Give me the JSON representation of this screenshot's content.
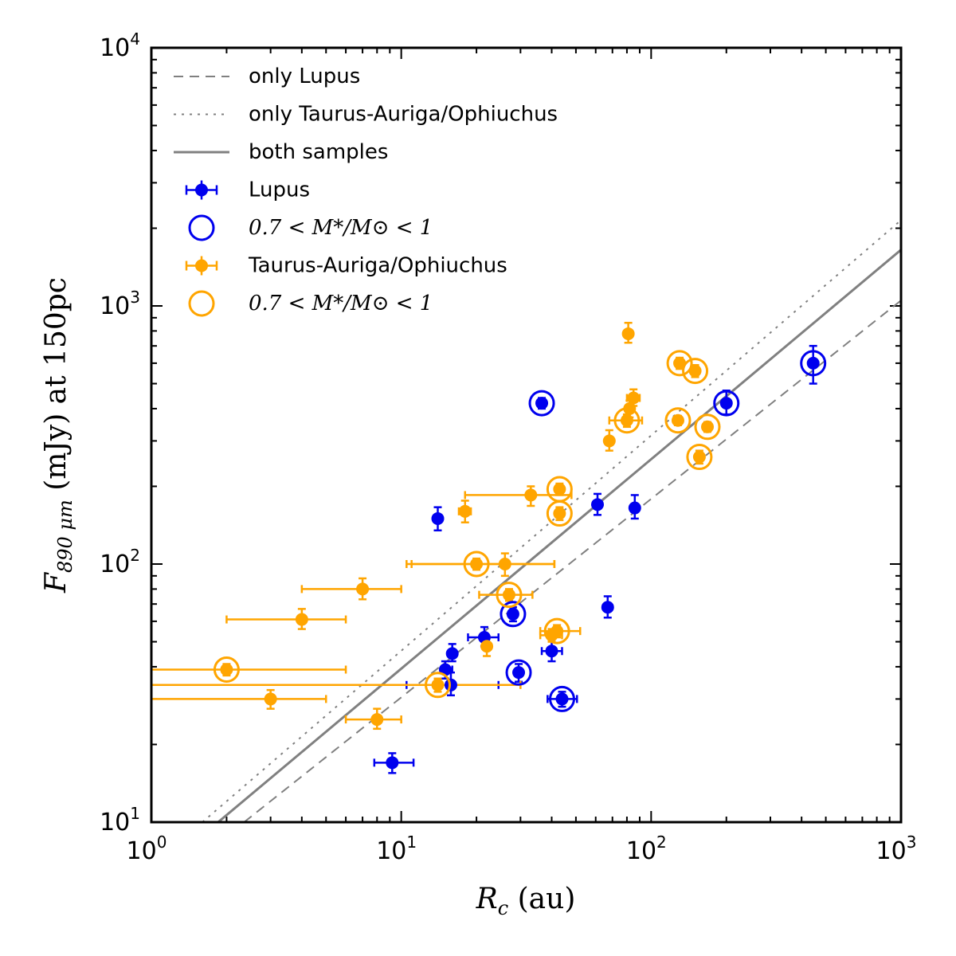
{
  "chart_data": {
    "type": "scatter",
    "x_scale": "log",
    "y_scale": "log",
    "xlim": [
      1,
      1000
    ],
    "ylim": [
      10,
      10000
    ],
    "x_ticks": [
      {
        "base": "10",
        "exp": "0",
        "value": 1
      },
      {
        "base": "10",
        "exp": "1",
        "value": 10
      },
      {
        "base": "10",
        "exp": "2",
        "value": 100
      },
      {
        "base": "10",
        "exp": "3",
        "value": 1000
      }
    ],
    "y_ticks": [
      {
        "base": "10",
        "exp": "1",
        "value": 10
      },
      {
        "base": "10",
        "exp": "2",
        "value": 100
      },
      {
        "base": "10",
        "exp": "3",
        "value": 1000
      },
      {
        "base": "10",
        "exp": "4",
        "value": 10000
      }
    ],
    "xlabel": {
      "main": "R",
      "sub": "c",
      "rest": " (au)"
    },
    "ylabel": {
      "main": "F",
      "sub": "890 μm",
      "rest": " (mJy) at 150pc"
    },
    "colors": {
      "lupus": "#0000ee",
      "taurus": "#ffa500",
      "fit": "#808080"
    },
    "fit_lines": [
      {
        "name": "only Lupus",
        "style": "dashed",
        "points": [
          [
            2.35,
            10
          ],
          [
            1000,
            1050
          ]
        ]
      },
      {
        "name": "only Taurus-Auriga/Ophiuchus",
        "style": "dotted",
        "points": [
          [
            1.6,
            10
          ],
          [
            1000,
            2150
          ]
        ]
      },
      {
        "name": "both samples",
        "style": "solid",
        "points": [
          [
            1.85,
            10
          ],
          [
            1000,
            1650
          ]
        ]
      }
    ],
    "legend": {
      "position": "top-left",
      "entries": [
        {
          "kind": "dashed",
          "label": "only Lupus"
        },
        {
          "kind": "dotted",
          "label": "only Taurus-Auriga/Ophiuchus"
        },
        {
          "kind": "solid",
          "label": "both samples"
        },
        {
          "kind": "lupus-point",
          "label": "Lupus"
        },
        {
          "kind": "lupus-ring",
          "label": "0.7 < M*/M⊙ < 1"
        },
        {
          "kind": "taurus-point",
          "label": "Taurus-Auriga/Ophiuchus"
        },
        {
          "kind": "taurus-ring",
          "label": "0.7 < M*/M⊙ < 1"
        }
      ]
    },
    "series": [
      {
        "name": "Lupus",
        "points": [
          {
            "x": 14.0,
            "y": 150,
            "xerr": [
              13.8,
              14.3
            ],
            "yerr": [
              135,
              166
            ],
            "ring": false
          },
          {
            "x": 36.5,
            "y": 420,
            "xerr": [
              36.3,
              36.8
            ],
            "yerr": [
              400,
              440
            ],
            "ring": true
          },
          {
            "x": 61.0,
            "y": 170,
            "xerr": [
              60.5,
              61.5
            ],
            "yerr": [
              155,
              187
            ],
            "ring": false
          },
          {
            "x": 86.0,
            "y": 165,
            "xerr": [
              85.5,
              86.5
            ],
            "yerr": [
              150,
              185
            ],
            "ring": false
          },
          {
            "x": 200,
            "y": 420,
            "xerr": [
              198,
              202
            ],
            "yerr": [
              380,
              470
            ],
            "ring": true
          },
          {
            "x": 445,
            "y": 600,
            "xerr": [
              440,
              450
            ],
            "yerr": [
              500,
              700
            ],
            "ring": true
          },
          {
            "x": 67.0,
            "y": 68,
            "xerr": [
              66.5,
              67.5
            ],
            "yerr": [
              62,
              75
            ],
            "ring": false
          },
          {
            "x": 28.0,
            "y": 64,
            "xerr": [
              27.8,
              28.2
            ],
            "yerr": [
              60,
              68
            ],
            "ring": true
          },
          {
            "x": 21.5,
            "y": 52,
            "xerr": [
              18.5,
              24.5
            ],
            "yerr": [
              48,
              57
            ],
            "ring": false
          },
          {
            "x": 16.0,
            "y": 45,
            "xerr": [
              15.8,
              16.2
            ],
            "yerr": [
              42,
              49
            ],
            "ring": false
          },
          {
            "x": 15.0,
            "y": 39,
            "xerr": [
              14.5,
              16.0
            ],
            "yerr": [
              36,
              42
            ],
            "ring": false
          },
          {
            "x": 15.8,
            "y": 34,
            "xerr": [
              10.5,
              24.5
            ],
            "yerr": [
              31,
              38
            ],
            "ring": false
          },
          {
            "x": 29.5,
            "y": 38,
            "xerr": [
              29.2,
              29.8
            ],
            "yerr": [
              35,
              41
            ],
            "ring": true
          },
          {
            "x": 40.0,
            "y": 46,
            "xerr": [
              36.5,
              44.0
            ],
            "yerr": [
              42,
              52
            ],
            "ring": false
          },
          {
            "x": 44.0,
            "y": 30,
            "xerr": [
              38.5,
              50.5
            ],
            "yerr": [
              28,
              32
            ],
            "ring": true
          },
          {
            "x": 9.2,
            "y": 17,
            "xerr": [
              7.8,
              11.2
            ],
            "yerr": [
              15.5,
              18.5
            ],
            "ring": false
          }
        ]
      },
      {
        "name": "Taurus-Auriga/Ophiuchus",
        "points": [
          {
            "x": 81.0,
            "y": 780,
            "xerr": [
              80.5,
              81.5
            ],
            "yerr": [
              720,
              860
            ],
            "ring": false
          },
          {
            "x": 130,
            "y": 600,
            "xerr": [
              129,
              131
            ],
            "yerr": [
              570,
              630
            ],
            "ring": true
          },
          {
            "x": 150,
            "y": 560,
            "xerr": [
              149,
              151
            ],
            "yerr": [
              530,
              590
            ],
            "ring": true
          },
          {
            "x": 85.0,
            "y": 440,
            "xerr": [
              80,
              90
            ],
            "yerr": [
              410,
              475
            ],
            "ring": false
          },
          {
            "x": 82.0,
            "y": 400,
            "xerr": [
              80,
              84
            ],
            "yerr": [
              370,
              430
            ],
            "ring": false
          },
          {
            "x": 80.0,
            "y": 360,
            "xerr": [
              68,
              92
            ],
            "yerr": [
              340,
              380
            ],
            "ring": true
          },
          {
            "x": 128,
            "y": 360,
            "xerr": [
              127,
              129
            ],
            "yerr": [
              345,
              375
            ],
            "ring": true
          },
          {
            "x": 168,
            "y": 340,
            "xerr": [
              167,
              169
            ],
            "yerr": [
              325,
              355
            ],
            "ring": true
          },
          {
            "x": 68.0,
            "y": 300,
            "xerr": [
              67.5,
              68.5
            ],
            "yerr": [
              275,
              330
            ],
            "ring": false
          },
          {
            "x": 156,
            "y": 260,
            "xerr": [
              155,
              157
            ],
            "yerr": [
              245,
              275
            ],
            "ring": true
          },
          {
            "x": 43.0,
            "y": 195,
            "xerr": [
              42.8,
              43.2
            ],
            "yerr": [
              185,
              205
            ],
            "ring": true
          },
          {
            "x": 33.0,
            "y": 185,
            "xerr": [
              18,
              48
            ],
            "yerr": [
              168,
              200
            ],
            "ring": false
          },
          {
            "x": 43.0,
            "y": 157,
            "xerr": [
              42.8,
              43.2
            ],
            "yerr": [
              148,
              166
            ],
            "ring": true
          },
          {
            "x": 18.0,
            "y": 160,
            "xerr": [
              17,
              19
            ],
            "yerr": [
              145,
              176
            ],
            "ring": false
          },
          {
            "x": 20.0,
            "y": 100,
            "xerr": [
              10.5,
              41
            ],
            "yerr": [
              95,
              105
            ],
            "ring": true
          },
          {
            "x": 26.0,
            "y": 100,
            "xerr": [
              11,
              41
            ],
            "yerr": [
              90,
              110
            ],
            "ring": false
          },
          {
            "x": 7.0,
            "y": 80,
            "xerr": [
              4,
              10
            ],
            "yerr": [
              73,
              88
            ],
            "ring": false
          },
          {
            "x": 27.0,
            "y": 76,
            "xerr": [
              20.5,
              33.5
            ],
            "yerr": [
              72,
              80
            ],
            "ring": true
          },
          {
            "x": 4.0,
            "y": 61,
            "xerr": [
              2,
              6
            ],
            "yerr": [
              56,
              67
            ],
            "ring": false
          },
          {
            "x": 42.0,
            "y": 55,
            "xerr": [
              36,
              52
            ],
            "yerr": [
              52,
              58
            ],
            "ring": true
          },
          {
            "x": 40.0,
            "y": 53,
            "xerr": [
              36,
              44
            ],
            "yerr": [
              50,
              56
            ],
            "ring": false
          },
          {
            "x": 22.0,
            "y": 48,
            "xerr": [
              21.8,
              22.2
            ],
            "yerr": [
              44,
              52
            ],
            "ring": false
          },
          {
            "x": 2.0,
            "y": 39,
            "xerr": [
              1.0,
              6
            ],
            "yerr": [
              37,
              41
            ],
            "ring": true
          },
          {
            "x": 14.0,
            "y": 34,
            "xerr": [
              1.0,
              30
            ],
            "yerr": [
              32,
              36
            ],
            "ring": true
          },
          {
            "x": 3.0,
            "y": 30,
            "xerr": [
              1.0,
              5
            ],
            "yerr": [
              27.5,
              32.5
            ],
            "ring": false
          },
          {
            "x": 8.0,
            "y": 25,
            "xerr": [
              6,
              10
            ],
            "yerr": [
              23,
              27.5
            ],
            "ring": false
          }
        ]
      }
    ]
  }
}
